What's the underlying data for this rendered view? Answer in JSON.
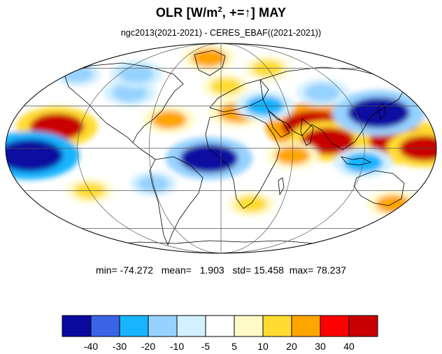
{
  "title": {
    "main": "OLR [W/m",
    "sup": "2",
    "rest": ", +=↑] MAY"
  },
  "subtitle": "ngc2013(2021-2021) - CERES_EBAF((2021-2021))",
  "stats": {
    "min_label": "min=",
    "min": "-74.272",
    "mean_label": "mean=",
    "mean": "1.903",
    "std_label": "std=",
    "std": "15.458",
    "max_label": "max=",
    "max": "78.237"
  },
  "colorbar": {
    "colors": [
      "#0a0aa0",
      "#3a64e6",
      "#19b4ff",
      "#96d2ff",
      "#d2f0ff",
      "#ffffff",
      "#fffac8",
      "#ffdc32",
      "#ffa500",
      "#ff0000",
      "#c80000"
    ],
    "labels": [
      "-40",
      "-30",
      "-20",
      "-10",
      "-5",
      "5",
      "10",
      "20",
      "30",
      "40"
    ]
  },
  "map": {
    "projection": "mollweide",
    "graticule": true,
    "anomalies": [
      {
        "lon": 80,
        "lat": 15,
        "value": 60
      },
      {
        "lon": 90,
        "lat": 5,
        "value": 45
      },
      {
        "lon": 150,
        "lat": 5,
        "value": 55
      },
      {
        "lon": 170,
        "lat": 0,
        "value": 40
      },
      {
        "lon": 140,
        "lat": 25,
        "value": -55
      },
      {
        "lon": -140,
        "lat": 15,
        "value": 45
      },
      {
        "lon": -160,
        "lat": -5,
        "value": -60
      },
      {
        "lon": -10,
        "lat": -7,
        "value": -50
      },
      {
        "lon": -45,
        "lat": 20,
        "value": 20
      },
      {
        "lon": 15,
        "lat": 25,
        "value": 25
      },
      {
        "lon": 5,
        "lat": 45,
        "value": 15
      },
      {
        "lon": -90,
        "lat": 40,
        "value": -20
      },
      {
        "lon": -100,
        "lat": 55,
        "value": -20
      },
      {
        "lon": 40,
        "lat": 30,
        "value": -25
      },
      {
        "lon": 60,
        "lat": -5,
        "value": 20
      },
      {
        "lon": -20,
        "lat": 70,
        "value": 20
      },
      {
        "lon": 120,
        "lat": -10,
        "value": -25
      },
      {
        "lon": -120,
        "lat": -30,
        "value": 15
      },
      {
        "lon": 30,
        "lat": -40,
        "value": 15
      },
      {
        "lon": -60,
        "lat": -25,
        "value": -15
      },
      {
        "lon": 170,
        "lat": -40,
        "value": 20
      },
      {
        "lon": 100,
        "lat": 40,
        "value": -20
      },
      {
        "lon": -170,
        "lat": 55,
        "value": -15
      },
      {
        "lon": 60,
        "lat": 60,
        "value": 15
      }
    ]
  }
}
